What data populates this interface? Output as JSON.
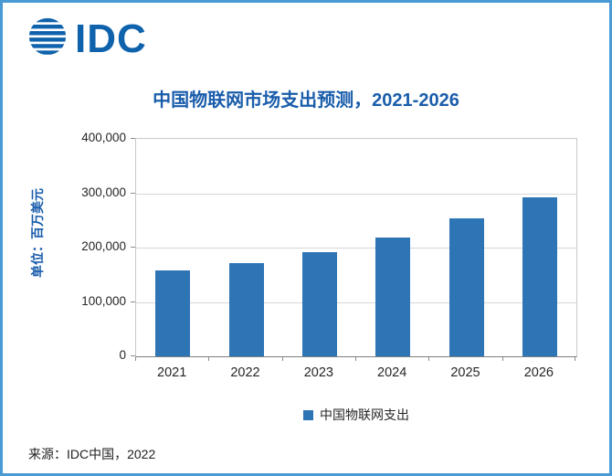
{
  "page": {
    "border_color": "#4a9ad4",
    "background": "#ffffff"
  },
  "logo": {
    "text": "IDC",
    "color": "#0f62ac"
  },
  "chart_data": {
    "type": "bar",
    "title": "中国物联网市场支出预测，2021-2026",
    "categories": [
      "2021",
      "2022",
      "2023",
      "2024",
      "2025",
      "2026"
    ],
    "values": [
      158000,
      172000,
      192000,
      218000,
      254000,
      293000
    ],
    "series": [
      {
        "name": "中国物联网支出",
        "values": [
          158000,
          172000,
          192000,
          218000,
          254000,
          293000
        ]
      }
    ],
    "xlabel": "",
    "ylabel": "单位：百万美元",
    "ylim": [
      0,
      400000
    ],
    "yticks": [
      0,
      100000,
      200000,
      300000,
      400000
    ],
    "ytick_labels": [
      "0",
      "100,000",
      "200,000",
      "300,000",
      "400,000"
    ],
    "grid": true,
    "legend_position": "bottom",
    "bar_color": "#2e75b6"
  },
  "legend": {
    "label": "中国物联网支出",
    "swatch_color": "#2e75b6"
  },
  "source": {
    "text": "来源：IDC中国，2022"
  }
}
